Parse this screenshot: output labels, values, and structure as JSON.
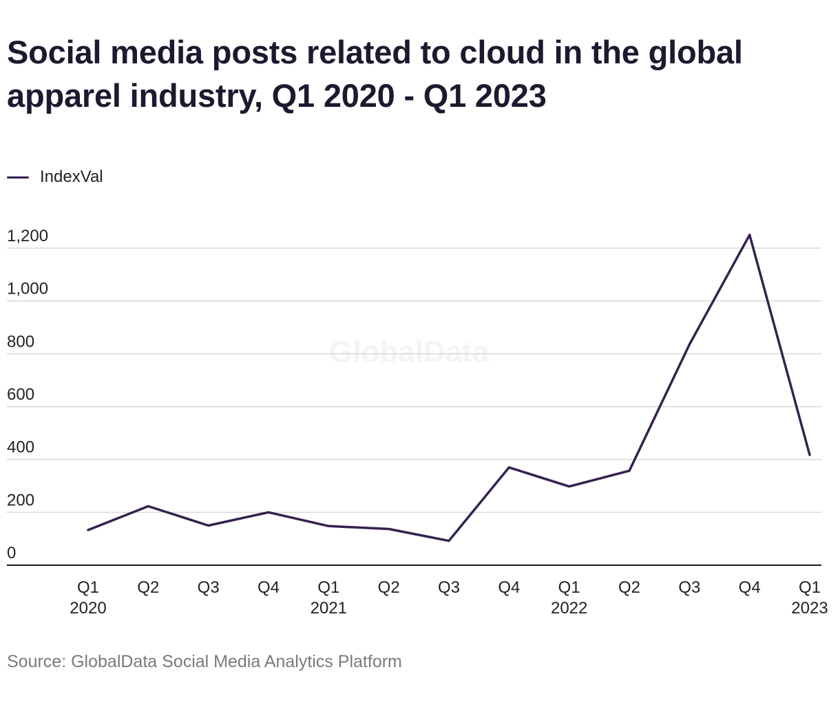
{
  "title": "Social media posts related to cloud in the global apparel industry, Q1 2020 - Q1 2023",
  "source": "Source: GlobalData Social Media Analytics Platform",
  "watermark": "GlobalData",
  "colors": {
    "series": "#35214f",
    "grid": "#d9d9d9",
    "axis": "#1a1a1a",
    "text": "#222222",
    "source": "#7a7a7a"
  },
  "chart_data": {
    "type": "line",
    "title": "Social media posts related to cloud in the global apparel industry, Q1 2020 - Q1 2023",
    "xlabel": "",
    "ylabel": "",
    "x": [
      [
        "Q1",
        "2020"
      ],
      [
        "Q2",
        ""
      ],
      [
        "Q3",
        ""
      ],
      [
        "Q4",
        ""
      ],
      [
        "Q1",
        "2021"
      ],
      [
        "Q2",
        ""
      ],
      [
        "Q3",
        ""
      ],
      [
        "Q4",
        ""
      ],
      [
        "Q1",
        "2022"
      ],
      [
        "Q2",
        ""
      ],
      [
        "Q3",
        ""
      ],
      [
        "Q4",
        ""
      ],
      [
        "Q1",
        "2023"
      ]
    ],
    "series": [
      {
        "name": "IndexVal",
        "values": [
          133,
          223,
          150,
          200,
          148,
          137,
          92,
          370,
          298,
          357,
          835,
          1250,
          417
        ]
      }
    ],
    "ylim": [
      0,
      1200
    ],
    "yticks": [
      0,
      200,
      400,
      600,
      800,
      1000,
      1200
    ],
    "ytick_labels": [
      "0",
      "200",
      "400",
      "600",
      "800",
      "1,000",
      "1,200"
    ],
    "grid": true,
    "legend_position": "top-left"
  }
}
